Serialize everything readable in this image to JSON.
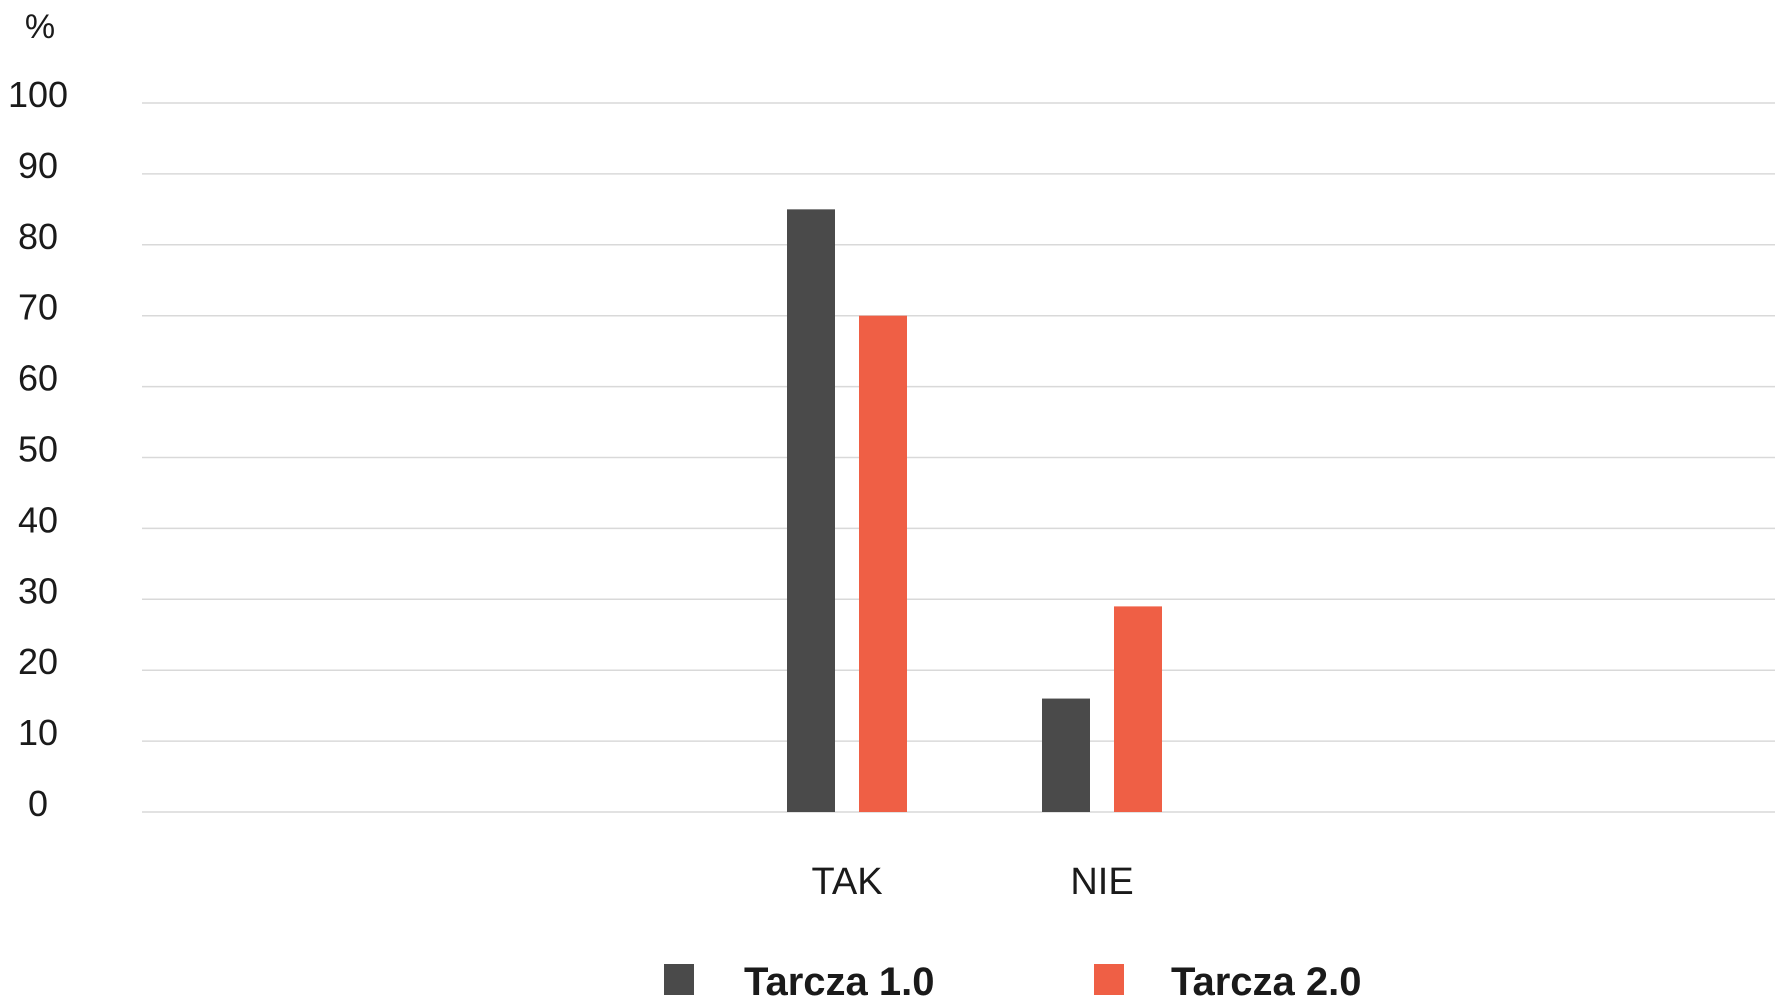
{
  "chart_data": {
    "type": "bar",
    "title": "",
    "xlabel": "",
    "ylabel": "%",
    "ylim": [
      0,
      100
    ],
    "yticks": [
      0,
      10,
      20,
      30,
      40,
      50,
      60,
      70,
      80,
      90,
      100
    ],
    "grid": true,
    "legend_position": "bottom",
    "categories": [
      "TAK",
      "NIE"
    ],
    "series": [
      {
        "name": "Tarcza 1.0",
        "color": "#4a4a4a",
        "values": [
          85,
          16
        ]
      },
      {
        "name": "Tarcza 2.0",
        "color": "#ef5f45",
        "values": [
          70,
          29
        ]
      }
    ]
  }
}
